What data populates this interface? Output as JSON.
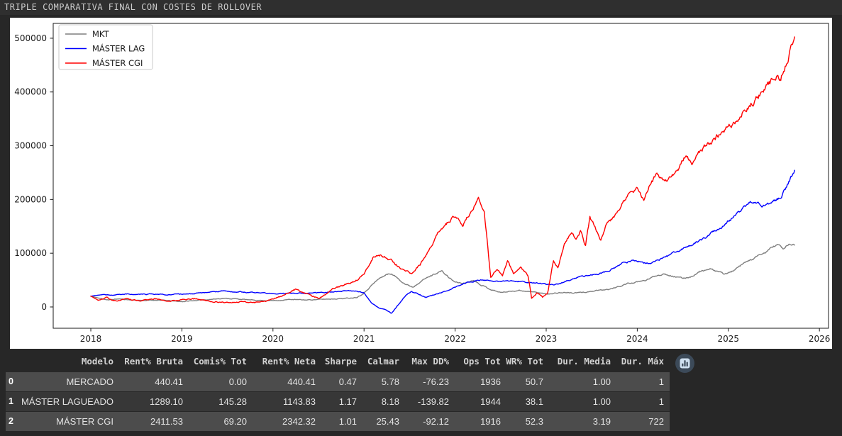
{
  "title_bar": {
    "text": "TRIPLE COMPARATIVA FINAL CON COSTES DE ROLLOVER"
  },
  "chart_data": {
    "type": "line",
    "title": "",
    "xlabel": "",
    "ylabel": "",
    "x_domain": [
      2017.587,
      2026.1
    ],
    "y_domain": [
      -39600,
      527600
    ],
    "xticks": [
      2018,
      2019,
      2020,
      2021,
      2022,
      2023,
      2024,
      2025,
      2026
    ],
    "yticks": [
      0,
      100000,
      200000,
      300000,
      400000,
      500000
    ],
    "grid": false,
    "legend_position": "upper-left",
    "axis_color": "#1a1a1a",
    "background": "#ffffff",
    "series": [
      {
        "name": "MKT",
        "color": "#7f7f7f",
        "points": [
          [
            2018.0,
            20000
          ],
          [
            2018.1,
            16000
          ],
          [
            2018.2,
            13000
          ],
          [
            2018.3,
            15000
          ],
          [
            2018.45,
            13000
          ],
          [
            2018.6,
            12000
          ],
          [
            2018.75,
            13000
          ],
          [
            2018.9,
            11000
          ],
          [
            2019.0,
            10000
          ],
          [
            2019.15,
            12000
          ],
          [
            2019.3,
            14000
          ],
          [
            2019.45,
            16000
          ],
          [
            2019.6,
            15000
          ],
          [
            2019.75,
            13000
          ],
          [
            2019.9,
            12000
          ],
          [
            2020.05,
            12000
          ],
          [
            2020.2,
            14000
          ],
          [
            2020.35,
            13000
          ],
          [
            2020.5,
            14000
          ],
          [
            2020.65,
            15000
          ],
          [
            2020.8,
            16000
          ],
          [
            2020.92,
            18000
          ],
          [
            2021.0,
            26000
          ],
          [
            2021.08,
            40000
          ],
          [
            2021.16,
            52000
          ],
          [
            2021.24,
            60000
          ],
          [
            2021.3,
            62000
          ],
          [
            2021.38,
            52000
          ],
          [
            2021.46,
            42000
          ],
          [
            2021.54,
            37000
          ],
          [
            2021.62,
            48000
          ],
          [
            2021.7,
            55000
          ],
          [
            2021.78,
            62000
          ],
          [
            2021.85,
            67000
          ],
          [
            2021.93,
            55000
          ],
          [
            2022.0,
            46000
          ],
          [
            2022.1,
            44000
          ],
          [
            2022.2,
            50000
          ],
          [
            2022.3,
            40000
          ],
          [
            2022.4,
            32000
          ],
          [
            2022.5,
            27000
          ],
          [
            2022.6,
            29000
          ],
          [
            2022.7,
            31000
          ],
          [
            2022.8,
            29000
          ],
          [
            2022.9,
            27000
          ],
          [
            2023.0,
            24000
          ],
          [
            2023.1,
            26000
          ],
          [
            2023.2,
            27000
          ],
          [
            2023.3,
            26000
          ],
          [
            2023.4,
            27000
          ],
          [
            2023.5,
            29000
          ],
          [
            2023.6,
            31000
          ],
          [
            2023.7,
            33000
          ],
          [
            2023.8,
            38000
          ],
          [
            2023.9,
            44000
          ],
          [
            2024.0,
            46000
          ],
          [
            2024.1,
            50000
          ],
          [
            2024.2,
            58000
          ],
          [
            2024.3,
            62000
          ],
          [
            2024.4,
            57000
          ],
          [
            2024.5,
            53000
          ],
          [
            2024.6,
            57000
          ],
          [
            2024.7,
            67000
          ],
          [
            2024.8,
            70000
          ],
          [
            2024.88,
            66000
          ],
          [
            2024.95,
            62000
          ],
          [
            2025.02,
            64000
          ],
          [
            2025.1,
            72000
          ],
          [
            2025.2,
            84000
          ],
          [
            2025.3,
            92000
          ],
          [
            2025.4,
            100000
          ],
          [
            2025.48,
            112000
          ],
          [
            2025.55,
            116000
          ],
          [
            2025.6,
            108000
          ],
          [
            2025.66,
            116000
          ],
          [
            2025.73,
            115000
          ]
        ]
      },
      {
        "name": "MÁSTER LAG",
        "color": "#0000ff",
        "points": [
          [
            2018.0,
            20000
          ],
          [
            2018.12,
            23000
          ],
          [
            2018.25,
            22000
          ],
          [
            2018.4,
            24000
          ],
          [
            2018.55,
            23000
          ],
          [
            2018.7,
            24000
          ],
          [
            2018.85,
            23000
          ],
          [
            2019.0,
            24000
          ],
          [
            2019.15,
            25000
          ],
          [
            2019.3,
            27000
          ],
          [
            2019.45,
            30000
          ],
          [
            2019.6,
            28000
          ],
          [
            2019.75,
            27000
          ],
          [
            2019.9,
            26000
          ],
          [
            2020.05,
            25000
          ],
          [
            2020.2,
            26000
          ],
          [
            2020.35,
            25000
          ],
          [
            2020.5,
            27000
          ],
          [
            2020.65,
            28000
          ],
          [
            2020.8,
            30000
          ],
          [
            2020.9,
            29000
          ],
          [
            2021.0,
            26000
          ],
          [
            2021.08,
            8000
          ],
          [
            2021.16,
            -2000
          ],
          [
            2021.24,
            -5000
          ],
          [
            2021.3,
            -12000
          ],
          [
            2021.38,
            5000
          ],
          [
            2021.46,
            22000
          ],
          [
            2021.52,
            28000
          ],
          [
            2021.6,
            24000
          ],
          [
            2021.68,
            18000
          ],
          [
            2021.76,
            22000
          ],
          [
            2021.85,
            27000
          ],
          [
            2021.95,
            33000
          ],
          [
            2022.05,
            41000
          ],
          [
            2022.15,
            46000
          ],
          [
            2022.25,
            50000
          ],
          [
            2022.35,
            49000
          ],
          [
            2022.45,
            47000
          ],
          [
            2022.55,
            49000
          ],
          [
            2022.65,
            48000
          ],
          [
            2022.75,
            47000
          ],
          [
            2022.85,
            45000
          ],
          [
            2022.95,
            44000
          ],
          [
            2023.05,
            41000
          ],
          [
            2023.15,
            43000
          ],
          [
            2023.25,
            50000
          ],
          [
            2023.35,
            55000
          ],
          [
            2023.45,
            58000
          ],
          [
            2023.55,
            61000
          ],
          [
            2023.65,
            65000
          ],
          [
            2023.75,
            72000
          ],
          [
            2023.85,
            82000
          ],
          [
            2023.95,
            86000
          ],
          [
            2024.05,
            84000
          ],
          [
            2024.15,
            80000
          ],
          [
            2024.25,
            88000
          ],
          [
            2024.35,
            96000
          ],
          [
            2024.45,
            105000
          ],
          [
            2024.55,
            111000
          ],
          [
            2024.65,
            120000
          ],
          [
            2024.75,
            130000
          ],
          [
            2024.85,
            142000
          ],
          [
            2024.92,
            147000
          ],
          [
            2025.0,
            160000
          ],
          [
            2025.08,
            170000
          ],
          [
            2025.16,
            182000
          ],
          [
            2025.24,
            196000
          ],
          [
            2025.3,
            192000
          ],
          [
            2025.38,
            189000
          ],
          [
            2025.46,
            193000
          ],
          [
            2025.52,
            198000
          ],
          [
            2025.58,
            205000
          ],
          [
            2025.64,
            222000
          ],
          [
            2025.68,
            238000
          ],
          [
            2025.73,
            256000
          ]
        ]
      },
      {
        "name": "MÁSTER CGI",
        "color": "#ff0000",
        "points": [
          [
            2018.0,
            20000
          ],
          [
            2018.08,
            13000
          ],
          [
            2018.17,
            17000
          ],
          [
            2018.28,
            11000
          ],
          [
            2018.4,
            15000
          ],
          [
            2018.55,
            12000
          ],
          [
            2018.7,
            16000
          ],
          [
            2018.85,
            11000
          ],
          [
            2019.0,
            13000
          ],
          [
            2019.15,
            15000
          ],
          [
            2019.3,
            11000
          ],
          [
            2019.5,
            8000
          ],
          [
            2019.65,
            10000
          ],
          [
            2019.8,
            8000
          ],
          [
            2019.95,
            12000
          ],
          [
            2020.1,
            20000
          ],
          [
            2020.25,
            33000
          ],
          [
            2020.4,
            22000
          ],
          [
            2020.5,
            15000
          ],
          [
            2020.65,
            33000
          ],
          [
            2020.8,
            42000
          ],
          [
            2020.92,
            50000
          ],
          [
            2021.0,
            60000
          ],
          [
            2021.1,
            92000
          ],
          [
            2021.18,
            96000
          ],
          [
            2021.3,
            86000
          ],
          [
            2021.42,
            70000
          ],
          [
            2021.52,
            61000
          ],
          [
            2021.62,
            80000
          ],
          [
            2021.72,
            108000
          ],
          [
            2021.82,
            140000
          ],
          [
            2021.92,
            158000
          ],
          [
            2022.0,
            170000
          ],
          [
            2022.08,
            150000
          ],
          [
            2022.16,
            175000
          ],
          [
            2022.26,
            200000
          ],
          [
            2022.32,
            180000
          ],
          [
            2022.39,
            55000
          ],
          [
            2022.46,
            70000
          ],
          [
            2022.52,
            60000
          ],
          [
            2022.58,
            85000
          ],
          [
            2022.64,
            62000
          ],
          [
            2022.72,
            72000
          ],
          [
            2022.8,
            58000
          ],
          [
            2022.84,
            16000
          ],
          [
            2022.9,
            26000
          ],
          [
            2022.96,
            18000
          ],
          [
            2023.02,
            28000
          ],
          [
            2023.08,
            88000
          ],
          [
            2023.13,
            70000
          ],
          [
            2023.2,
            118000
          ],
          [
            2023.28,
            140000
          ],
          [
            2023.33,
            124000
          ],
          [
            2023.38,
            142000
          ],
          [
            2023.43,
            114000
          ],
          [
            2023.48,
            165000
          ],
          [
            2023.54,
            148000
          ],
          [
            2023.6,
            125000
          ],
          [
            2023.66,
            155000
          ],
          [
            2023.72,
            162000
          ],
          [
            2023.78,
            172000
          ],
          [
            2023.85,
            195000
          ],
          [
            2023.92,
            210000
          ],
          [
            2024.0,
            224000
          ],
          [
            2024.07,
            198000
          ],
          [
            2024.15,
            232000
          ],
          [
            2024.22,
            246000
          ],
          [
            2024.3,
            230000
          ],
          [
            2024.38,
            242000
          ],
          [
            2024.45,
            256000
          ],
          [
            2024.52,
            280000
          ],
          [
            2024.6,
            268000
          ],
          [
            2024.68,
            285000
          ],
          [
            2024.79,
            305000
          ],
          [
            2024.88,
            318000
          ],
          [
            2024.95,
            330000
          ],
          [
            2025.0,
            334000
          ],
          [
            2025.08,
            344000
          ],
          [
            2025.16,
            362000
          ],
          [
            2025.24,
            378000
          ],
          [
            2025.32,
            388000
          ],
          [
            2025.4,
            404000
          ],
          [
            2025.48,
            422000
          ],
          [
            2025.53,
            432000
          ],
          [
            2025.57,
            420000
          ],
          [
            2025.62,
            448000
          ],
          [
            2025.67,
            472000
          ],
          [
            2025.73,
            505000
          ]
        ]
      }
    ]
  },
  "table": {
    "columns": [
      "Modelo",
      "Rent% Bruta",
      "Comis% Tot",
      "Rent% Neta",
      "Sharpe",
      "Calmar",
      "Max DD%",
      "Ops Tot",
      "WR% Tot",
      "Dur. Media",
      "Dur. Máx"
    ],
    "rows": [
      {
        "index": "0",
        "cells": [
          "MERCADO",
          "440.41",
          "0.00",
          "440.41",
          "0.47",
          "5.78",
          "-76.23",
          "1936",
          "50.7",
          "1.00",
          "1"
        ]
      },
      {
        "index": "1",
        "cells": [
          "MÁSTER LAGUEADO",
          "1289.10",
          "145.28",
          "1143.83",
          "1.17",
          "8.18",
          "-139.82",
          "1944",
          "38.1",
          "1.00",
          "1"
        ]
      },
      {
        "index": "2",
        "cells": [
          "MÁSTER CGI",
          "2411.53",
          "69.20",
          "2342.32",
          "1.01",
          "25.43",
          "-92.12",
          "1916",
          "52.3",
          "3.19",
          "722"
        ]
      }
    ],
    "action_button": {
      "icon": "bar-chart-icon"
    }
  },
  "colors": {
    "page_background": "#272727",
    "title_bar_background": "#2f2f2f",
    "row_light": "#4c4c4c",
    "row_dark": "#373737",
    "button_circle": "#3c4a59",
    "button_glyph": "#cfe0f0"
  }
}
